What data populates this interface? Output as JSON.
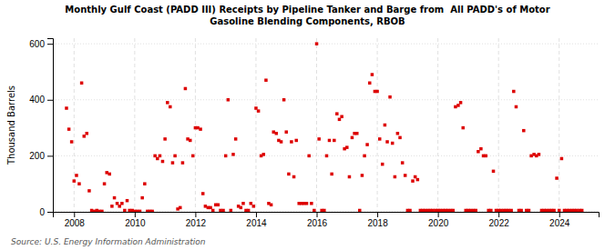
{
  "chart_data": {
    "type": "scatter",
    "title": "Monthly Gulf Coast (PADD III) Receipts by Pipeline Tanker and Barge from  All PADD's of Motor\nGasoline Blending Components, RBOB",
    "ylabel": "Thousand Barrels",
    "annotations": [
      "Source: U.S. Energy Information Administration"
    ],
    "color": "#dd0000",
    "marker": "square",
    "grid": true,
    "xlim": [
      2007.3,
      2025.3
    ],
    "xticks": [
      2008,
      2010,
      2012,
      2014,
      2016,
      2018,
      2020,
      2022,
      2024
    ],
    "ylim": [
      0,
      620
    ],
    "yticks": [
      0,
      200,
      400,
      600
    ],
    "x": [
      2007.75,
      2007.83,
      2007.92,
      2008.0,
      2008.08,
      2008.17,
      2008.25,
      2008.33,
      2008.42,
      2008.5,
      2008.58,
      2008.67,
      2008.75,
      2008.83,
      2008.92,
      2009.0,
      2009.08,
      2009.17,
      2009.25,
      2009.33,
      2009.42,
      2009.5,
      2009.58,
      2009.67,
      2009.75,
      2009.83,
      2009.92,
      2010.0,
      2010.08,
      2010.17,
      2010.25,
      2010.33,
      2010.42,
      2010.5,
      2010.58,
      2010.67,
      2010.75,
      2010.83,
      2010.92,
      2011.0,
      2011.08,
      2011.17,
      2011.25,
      2011.33,
      2011.42,
      2011.5,
      2011.58,
      2011.67,
      2011.75,
      2011.83,
      2011.92,
      2012.0,
      2012.08,
      2012.17,
      2012.25,
      2012.33,
      2012.42,
      2012.5,
      2012.58,
      2012.67,
      2012.75,
      2012.83,
      2012.92,
      2013.0,
      2013.08,
      2013.17,
      2013.25,
      2013.33,
      2013.42,
      2013.5,
      2013.58,
      2013.67,
      2013.75,
      2013.83,
      2013.92,
      2014.0,
      2014.08,
      2014.17,
      2014.25,
      2014.33,
      2014.42,
      2014.5,
      2014.58,
      2014.67,
      2014.75,
      2014.83,
      2014.92,
      2015.0,
      2015.08,
      2015.17,
      2015.25,
      2015.33,
      2015.42,
      2015.5,
      2015.58,
      2015.67,
      2015.75,
      2015.83,
      2015.92,
      2016.0,
      2016.08,
      2016.17,
      2016.25,
      2016.33,
      2016.42,
      2016.5,
      2016.58,
      2016.67,
      2016.75,
      2016.83,
      2016.92,
      2017.0,
      2017.08,
      2017.17,
      2017.25,
      2017.33,
      2017.42,
      2017.5,
      2017.58,
      2017.67,
      2017.75,
      2017.83,
      2017.92,
      2018.0,
      2018.08,
      2018.17,
      2018.25,
      2018.33,
      2018.42,
      2018.5,
      2018.58,
      2018.67,
      2018.75,
      2018.83,
      2018.92,
      2019.0,
      2019.08,
      2019.17,
      2019.25,
      2019.33,
      2019.42,
      2019.5,
      2019.58,
      2019.67,
      2019.75,
      2019.83,
      2019.92,
      2020.0,
      2020.08,
      2020.17,
      2020.25,
      2020.33,
      2020.42,
      2020.5,
      2020.58,
      2020.67,
      2020.75,
      2020.83,
      2020.92,
      2021.0,
      2021.08,
      2021.17,
      2021.25,
      2021.33,
      2021.42,
      2021.5,
      2021.58,
      2021.67,
      2021.75,
      2021.83,
      2021.92,
      2022.0,
      2022.08,
      2022.17,
      2022.25,
      2022.33,
      2022.42,
      2022.5,
      2022.58,
      2022.67,
      2022.75,
      2022.83,
      2022.92,
      2023.0,
      2023.08,
      2023.17,
      2023.25,
      2023.33,
      2023.42,
      2023.5,
      2023.58,
      2023.67,
      2023.75,
      2023.83,
      2023.92,
      2024.0,
      2024.08,
      2024.17,
      2024.25,
      2024.33,
      2024.42,
      2024.5,
      2024.58,
      2024.67,
      2024.75
    ],
    "values": [
      370,
      295,
      250,
      110,
      130,
      100,
      460,
      270,
      280,
      75,
      5,
      2,
      5,
      2,
      2,
      100,
      140,
      135,
      20,
      50,
      30,
      20,
      30,
      5,
      40,
      5,
      5,
      2,
      2,
      2,
      50,
      100,
      2,
      2,
      2,
      200,
      190,
      200,
      180,
      260,
      390,
      375,
      175,
      200,
      10,
      15,
      175,
      440,
      260,
      255,
      200,
      300,
      300,
      295,
      65,
      20,
      15,
      15,
      5,
      25,
      25,
      5,
      5,
      200,
      400,
      5,
      205,
      260,
      20,
      15,
      30,
      5,
      5,
      30,
      20,
      370,
      360,
      200,
      205,
      470,
      30,
      25,
      285,
      280,
      255,
      250,
      400,
      285,
      135,
      250,
      125,
      255,
      30,
      30,
      30,
      30,
      200,
      30,
      5,
      600,
      260,
      5,
      5,
      200,
      255,
      135,
      255,
      350,
      330,
      340,
      225,
      230,
      125,
      265,
      280,
      280,
      5,
      130,
      200,
      240,
      460,
      490,
      430,
      430,
      260,
      170,
      310,
      250,
      410,
      245,
      125,
      280,
      265,
      175,
      130,
      5,
      5,
      110,
      125,
      115,
      5,
      5,
      5,
      5,
      5,
      5,
      5,
      5,
      5,
      5,
      5,
      5,
      5,
      5,
      375,
      380,
      390,
      300,
      5,
      5,
      5,
      5,
      5,
      215,
      225,
      200,
      200,
      5,
      5,
      145,
      5,
      5,
      5,
      5,
      5,
      5,
      5,
      430,
      375,
      5,
      5,
      290,
      5,
      5,
      200,
      205,
      200,
      205,
      5,
      5,
      5,
      5,
      5,
      5,
      120,
      5,
      190,
      5,
      5,
      5,
      5,
      5,
      5,
      5,
      5
    ]
  }
}
